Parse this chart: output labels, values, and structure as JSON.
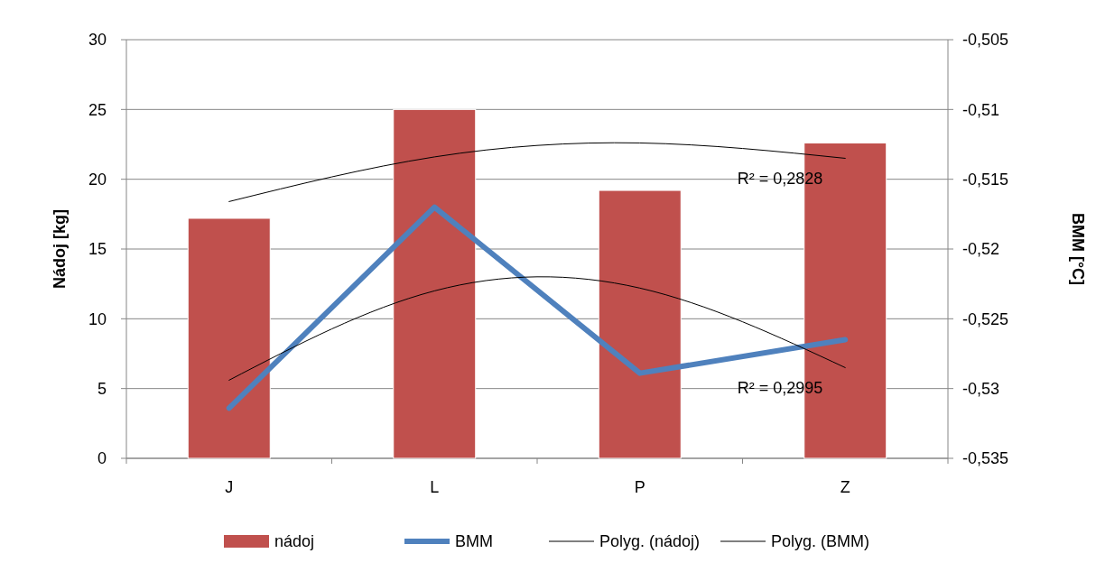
{
  "chart_data": {
    "type": "bar",
    "ylabel": "Nádoj [kg]",
    "y2label": "BMM [°C]",
    "categories": [
      "J",
      "L",
      "P",
      "Z"
    ],
    "series": [
      {
        "name": "nádoj",
        "color": "#c0504d",
        "values": [
          17.2,
          25,
          19.2,
          22.6
        ]
      },
      {
        "name": "BMM",
        "type": "line",
        "axis": "y2",
        "color": "#4f81bd",
        "values": [
          -0.5314,
          -0.517,
          -0.5289,
          -0.5265
        ]
      },
      {
        "name": "Polyg. (nádoj)",
        "type": "line",
        "color": "#000000",
        "values": [
          18.4,
          21.6,
          22.6,
          21.5
        ]
      },
      {
        "name": "Polyg. (BMM)",
        "type": "line",
        "axis": "y2",
        "color": "#000000",
        "values": [
          -0.5294,
          -0.523,
          -0.5228,
          -0.5285
        ]
      }
    ],
    "ylim": [
      0,
      30
    ],
    "yticks": [
      0,
      5,
      10,
      15,
      20,
      25,
      30
    ],
    "y2lim": [
      -0.535,
      -0.505
    ],
    "y2ticks": [
      {
        "value": -0.535,
        "label": "-0,535"
      },
      {
        "value": -0.53,
        "label": "-0,53"
      },
      {
        "value": -0.525,
        "label": "-0,525"
      },
      {
        "value": -0.52,
        "label": "-0,52"
      },
      {
        "value": -0.515,
        "label": "-0,515"
      },
      {
        "value": -0.51,
        "label": "-0,51"
      },
      {
        "value": -0.505,
        "label": "-0,505"
      }
    ],
    "annotations": [
      "R² = 0,2828",
      "R² = 0,2995"
    ],
    "grid": "y",
    "legend": "bottom"
  }
}
